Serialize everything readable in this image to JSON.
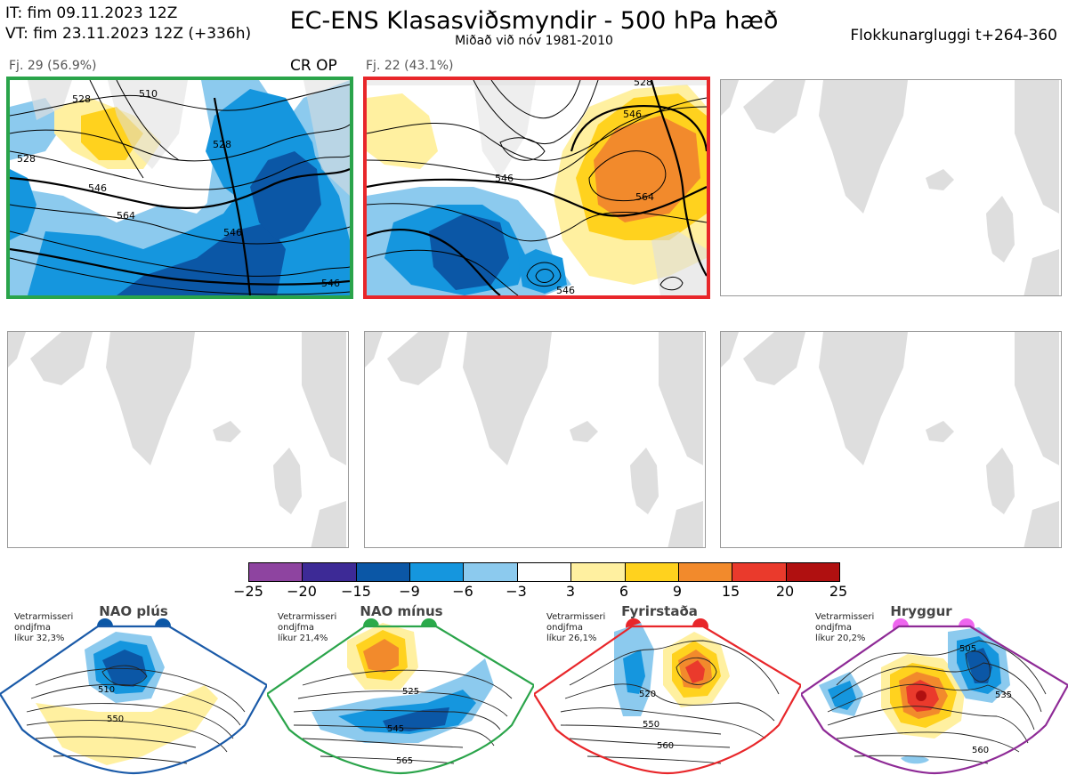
{
  "header": {
    "it_line": "IT: fim 09.11.2023 12Z",
    "vt_line": "VT: fim 23.11.2023 12Z  (+336h)",
    "title": "EC-ENS Klasasviðsmyndir - 500 hPa hæð",
    "subtitle": "Miðað við nóv 1981-2010",
    "window": "Flokkunargluggi t+264-360"
  },
  "panels": [
    {
      "label": "Fj. 29 (56.9%)",
      "tag": "CR OP",
      "border_color": "#2aa44a",
      "contour_labels": [
        "510",
        "528",
        "528",
        "546",
        "564",
        "546",
        "528",
        "546"
      ]
    },
    {
      "label": "Fj. 22 (43.1%)",
      "tag": "",
      "border_color": "#e8262a",
      "contour_labels": [
        "528",
        "546",
        "546",
        "564",
        "546"
      ]
    },
    {
      "label": "",
      "tag": "",
      "border_color": ""
    },
    {
      "label": "",
      "tag": "",
      "border_color": ""
    },
    {
      "label": "",
      "tag": "",
      "border_color": ""
    },
    {
      "label": "",
      "tag": "",
      "border_color": ""
    }
  ],
  "colorbar": {
    "ticks": [
      "−25",
      "−20",
      "−15",
      "−9",
      "−6",
      "−3",
      "3",
      "6",
      "9",
      "15",
      "20",
      "25"
    ],
    "colors": [
      "#8e44a0",
      "#3d2a96",
      "#0b57a6",
      "#1596de",
      "#8ccaee",
      "#ffffff",
      "#fff0a0",
      "#ffd21e",
      "#f28a2c",
      "#ea3a2c",
      "#b01010"
    ]
  },
  "regimes": [
    {
      "name": "NAO plús",
      "note": [
        "Vetrarmisseri",
        "ondjfma",
        "líkur 32,3%"
      ],
      "color": "#1a5aa8",
      "dot_color": "#0b57a6",
      "contour_labels": [
        "510",
        "550"
      ]
    },
    {
      "name": "NAO mínus",
      "note": [
        "Vetrarmisseri",
        "ondjfma",
        "líkur 21,4%"
      ],
      "color": "#2aa44a",
      "dot_color": "#2aaa4a",
      "contour_labels": [
        "525",
        "545",
        "565"
      ]
    },
    {
      "name": "Fyrirstaða",
      "note": [
        "Vetrarmisseri",
        "ondjfma",
        "líkur 26,1%"
      ],
      "color": "#e8262a",
      "dot_color": "#e8262a",
      "contour_labels": [
        "520",
        "550",
        "560"
      ]
    },
    {
      "name": "Hryggur",
      "note": [
        "Vetrarmisseri",
        "ondjfma",
        "líkur 20,2%"
      ],
      "color": "#8e2a96",
      "dot_color": "#ee66ee",
      "contour_labels": [
        "505",
        "535",
        "560"
      ]
    }
  ]
}
